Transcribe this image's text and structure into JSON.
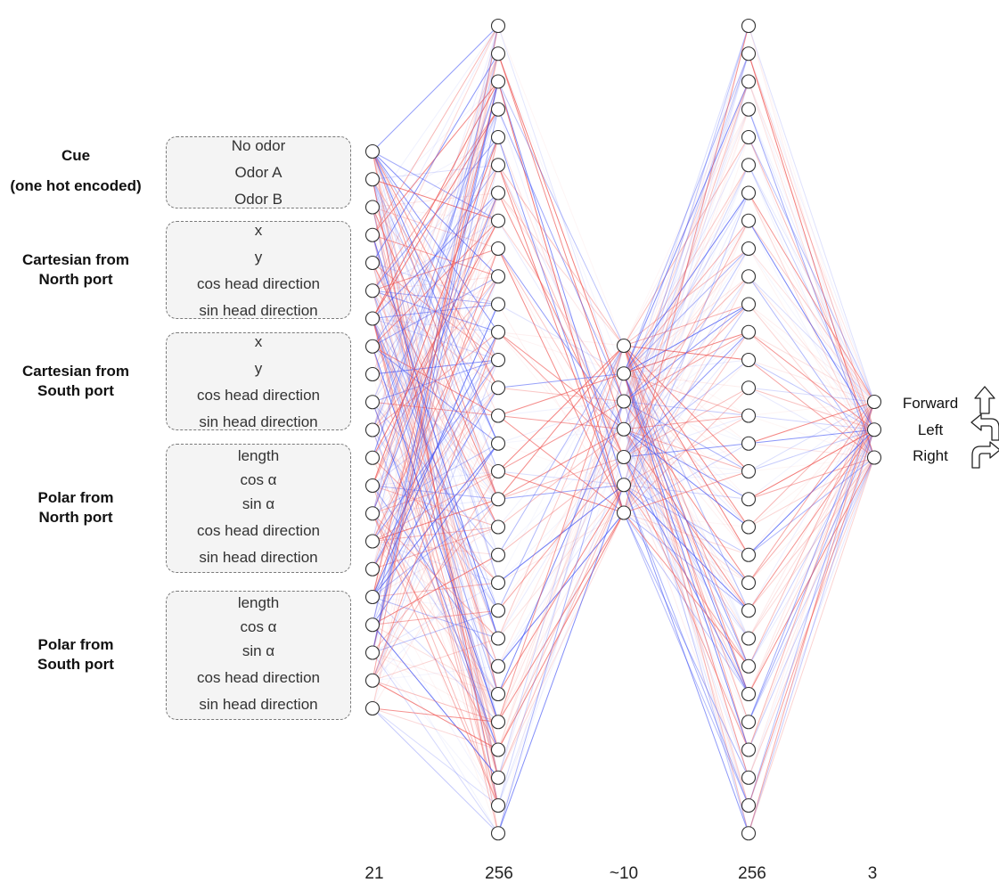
{
  "input_groups": [
    {
      "name": "cue",
      "title_lines": [
        "Cue",
        "(one hot encoded)"
      ],
      "features": [
        "No odor",
        "Odor A",
        "Odor B"
      ]
    },
    {
      "name": "cartesian-north",
      "title_lines": [
        "Cartesian from",
        "North port"
      ],
      "features": [
        "x",
        "y",
        "cos head direction",
        "sin head direction"
      ]
    },
    {
      "name": "cartesian-south",
      "title_lines": [
        "Cartesian from",
        "South port"
      ],
      "features": [
        "x",
        "y",
        "cos head direction",
        "sin head direction"
      ]
    },
    {
      "name": "polar-north",
      "title_lines": [
        "Polar from",
        "North port"
      ],
      "features": [
        "length",
        "cos α",
        "sin α",
        "cos head direction",
        "sin head direction"
      ]
    },
    {
      "name": "polar-south",
      "title_lines": [
        "Polar from",
        "South port"
      ],
      "features": [
        "length",
        "cos α",
        "sin α",
        "cos head direction",
        "sin head direction"
      ]
    }
  ],
  "layers": [
    {
      "count_label": "21",
      "drawn_nodes": 21
    },
    {
      "count_label": "256",
      "drawn_nodes": 30
    },
    {
      "count_label": "~10",
      "drawn_nodes": 7
    },
    {
      "count_label": "256",
      "drawn_nodes": 30
    },
    {
      "count_label": "3",
      "drawn_nodes": 3
    }
  ],
  "outputs": [
    {
      "label": "Forward",
      "icon": "arrow-up-icon"
    },
    {
      "label": "Left",
      "icon": "arrow-turn-left-icon"
    },
    {
      "label": "Right",
      "icon": "arrow-turn-right-icon"
    }
  ],
  "colors": {
    "positive_weight": "#ef5350",
    "negative_weight": "#3f51f5",
    "node_stroke": "#333333",
    "node_fill": "#ffffff",
    "box_fill": "#f4f4f4",
    "box_border": "#7a7a7a"
  }
}
